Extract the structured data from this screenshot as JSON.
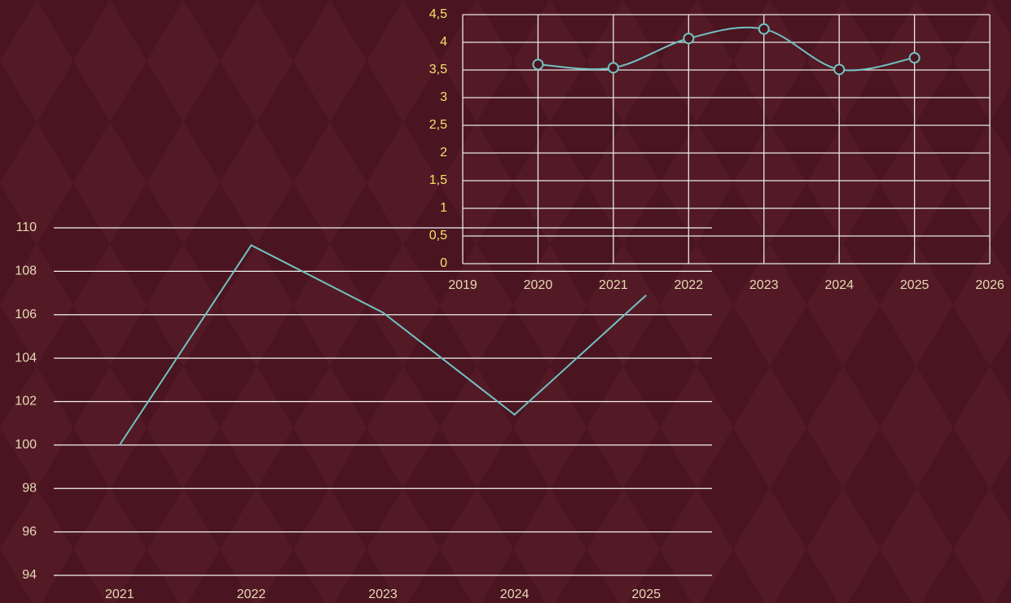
{
  "chart_data": [
    {
      "type": "line",
      "categories": [
        "2021",
        "2022",
        "2023",
        "2024",
        "2025"
      ],
      "values": [
        100,
        109.2,
        106.1,
        101.4,
        106.9
      ],
      "color": "#72c2c2",
      "ylim": [
        94,
        110
      ],
      "yticks": [
        94,
        96,
        98,
        100,
        102,
        104,
        106,
        108,
        110
      ],
      "grid": true
    },
    {
      "type": "scatter",
      "x": [
        2020,
        2021,
        2022,
        2023,
        2024,
        2025
      ],
      "values": [
        3.6,
        3.54,
        4.07,
        4.24,
        3.51,
        3.72
      ],
      "color": "#72c2c2",
      "smooth": true,
      "xlim": [
        2019,
        2026
      ],
      "xticks": [
        2019,
        2020,
        2021,
        2022,
        2023,
        2024,
        2025,
        2026
      ],
      "ylim": [
        0,
        4.5
      ],
      "yticks": [
        0,
        {
          "value": 0.5,
          "label": "0,5"
        },
        1,
        {
          "value": 1.5,
          "label": "1,5"
        },
        2,
        {
          "value": 2.5,
          "label": "2,5"
        },
        3,
        {
          "value": 3.5,
          "label": "3,5"
        },
        4,
        {
          "value": 4.5,
          "label": "4,5"
        }
      ],
      "grid": true
    }
  ]
}
